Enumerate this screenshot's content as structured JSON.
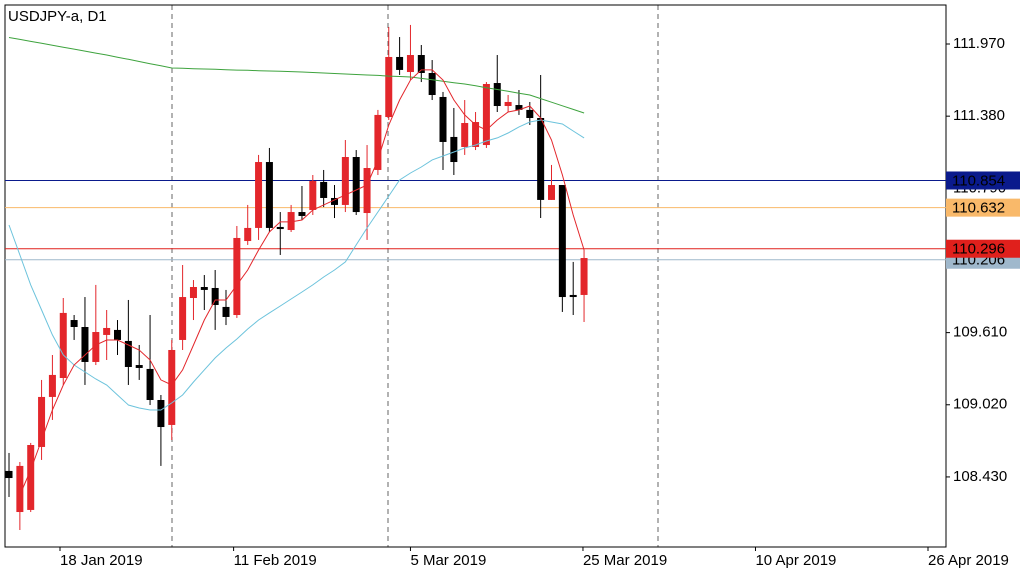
{
  "chart_data": {
    "type": "candlestick",
    "title": "USDJPY-a, D1",
    "up_color": "#e3262b",
    "down_color": "#000000",
    "open": [
      108.479,
      108.143,
      108.16,
      108.675,
      109.084,
      109.239,
      109.713,
      109.656,
      109.37,
      109.591,
      109.632,
      109.542,
      109.345,
      109.313,
      109.059,
      108.855,
      109.55,
      109.893,
      109.983,
      109.975,
      109.82,
      109.754,
      110.359,
      110.466,
      111.005,
      110.474,
      110.449,
      110.596,
      110.613,
      110.842,
      110.711,
      110.654,
      111.046,
      110.588,
      110.94,
      111.373,
      111.864,
      111.741,
      111.88,
      111.733,
      111.537,
      111.21,
      111.128,
      111.128,
      111.144,
      111.651,
      111.463,
      111.471,
      111.431,
      111.365,
      110.695,
      110.817,
      109.918,
      109.918
    ],
    "high": [
      108.626,
      108.552,
      108.708,
      109.223,
      109.427,
      109.893,
      109.754,
      109.901,
      110.0,
      109.795,
      109.713,
      109.877,
      109.509,
      109.754,
      109.1,
      109.55,
      110.163,
      110.04,
      110.081,
      110.122,
      109.959,
      110.482,
      110.654,
      111.063,
      111.12,
      110.596,
      110.654,
      110.809,
      110.899,
      110.94,
      110.817,
      111.185,
      111.103,
      111.144,
      111.431,
      112.109,
      112.027,
      112.126,
      111.962,
      111.839,
      111.578,
      111.447,
      111.512,
      111.414,
      111.659,
      111.88,
      111.553,
      111.594,
      111.496,
      111.717,
      110.981,
      110.817,
      110.188,
      110.286
    ],
    "low": [
      108.266,
      107.996,
      108.143,
      108.569,
      108.896,
      109.182,
      109.55,
      109.182,
      109.345,
      109.386,
      109.427,
      109.182,
      109.223,
      109.018,
      108.52,
      108.732,
      109.468,
      109.713,
      109.795,
      109.632,
      109.672,
      109.73,
      110.327,
      110.368,
      110.433,
      110.245,
      110.433,
      110.531,
      110.572,
      110.637,
      110.547,
      110.596,
      110.572,
      110.368,
      110.899,
      111.349,
      111.717,
      111.676,
      111.659,
      111.512,
      110.94,
      110.899,
      111.063,
      111.103,
      111.12,
      111.414,
      111.414,
      111.39,
      111.308,
      110.547,
      110.695,
      109.779,
      109.754,
      109.697
    ],
    "close": [
      108.421,
      108.52,
      108.691,
      109.084,
      109.264,
      109.771,
      109.656,
      109.37,
      109.615,
      109.648,
      109.55,
      109.329,
      109.321,
      109.059,
      108.838,
      109.468,
      109.901,
      109.983,
      109.959,
      109.836,
      109.738,
      110.384,
      110.466,
      111.005,
      110.466,
      110.457,
      110.596,
      110.564,
      110.85,
      110.711,
      110.654,
      111.046,
      110.596,
      110.956,
      111.39,
      111.864,
      111.758,
      111.88,
      111.733,
      111.553,
      111.169,
      111.005,
      111.324,
      111.332,
      111.643,
      111.463,
      111.496,
      111.431,
      111.365,
      110.695,
      110.817,
      109.901,
      109.901,
      110.22
    ],
    "indicators": [
      {
        "color": "#3ea33e",
        "values": [
          112.023,
          112.008,
          111.991,
          111.976,
          111.96,
          111.944,
          111.928,
          111.912,
          111.896,
          111.88,
          111.862,
          111.845,
          111.827,
          111.809,
          111.792,
          111.774,
          111.771,
          111.768,
          111.766,
          111.763,
          111.76,
          111.757,
          111.755,
          111.752,
          111.749,
          111.747,
          111.744,
          111.741,
          111.737,
          111.733,
          111.729,
          111.725,
          111.721,
          111.717,
          111.713,
          111.708,
          111.704,
          111.7,
          111.689,
          111.677,
          111.666,
          111.654,
          111.643,
          111.628,
          111.613,
          111.598,
          111.583,
          111.568,
          111.553,
          111.524,
          111.494,
          111.465,
          111.435,
          111.406
        ]
      },
      {
        "color": "#6cc3dc",
        "values": [
          110.49,
          110.245,
          110.0,
          109.795,
          109.591,
          109.427,
          109.345,
          109.288,
          109.231,
          109.182,
          109.1,
          109.018,
          108.994,
          108.977,
          108.977,
          109.035,
          109.1,
          109.206,
          109.305,
          109.403,
          109.484,
          109.558,
          109.64,
          109.713,
          109.771,
          109.828,
          109.885,
          109.942,
          110.0,
          110.065,
          110.122,
          110.188,
          110.327,
          110.466,
          110.596,
          110.727,
          110.858,
          110.915,
          110.964,
          111.022,
          111.054,
          111.087,
          111.12,
          111.144,
          111.177,
          111.202,
          111.242,
          111.292,
          111.332,
          111.349,
          111.332,
          111.316,
          111.259,
          111.202
        ]
      },
      {
        "color": "#e3262b",
        "values": [
          null,
          108.282,
          108.487,
          108.732,
          108.977,
          109.182,
          109.345,
          109.427,
          109.509,
          109.55,
          109.55,
          109.509,
          109.468,
          109.386,
          109.223,
          109.182,
          109.305,
          109.509,
          109.713,
          109.877,
          109.877,
          110.0,
          110.122,
          110.286,
          110.433,
          110.515,
          110.515,
          110.531,
          110.613,
          110.654,
          110.695,
          110.736,
          110.776,
          110.817,
          111.022,
          111.308,
          111.512,
          111.676,
          111.758,
          111.758,
          111.676,
          111.512,
          111.39,
          111.308,
          111.267,
          111.349,
          111.414,
          111.431,
          111.463,
          111.365,
          111.185,
          110.899,
          110.572,
          110.286
        ]
      }
    ],
    "levels": [
      {
        "value": 110.206,
        "color": "#9fb8cc",
        "text_color": "#000000"
      },
      {
        "value": 110.632,
        "color": "#f9b96a",
        "text_color": "#ffffff"
      },
      {
        "value": 110.854,
        "color": "#0a1a8c",
        "text_color": "#ffffff"
      },
      {
        "value": 110.296,
        "color": "#e0201c",
        "text_color": "#ffffff"
      }
    ],
    "ylim": [
      107.857,
      112.289
    ],
    "yticks": [
      {
        "value": 111.97,
        "label": "111.970"
      },
      {
        "value": 111.38,
        "label": "111.380"
      },
      {
        "value": 110.79,
        "label": "110.790"
      },
      {
        "value": 109.61,
        "label": "109.610"
      },
      {
        "value": 109.02,
        "label": "109.020"
      },
      {
        "value": 108.43,
        "label": "108.430"
      }
    ],
    "xlim": [
      -0.37,
      86.36
    ],
    "xticks": [
      {
        "value": 4.7,
        "label": "18 Jan 2019"
      },
      {
        "value": 20.7,
        "label": "11 Feb 2019"
      },
      {
        "value": 37,
        "label": "5 Mar 2019"
      },
      {
        "value": 52.9,
        "label": "25 Mar 2019"
      },
      {
        "value": 68.8,
        "label": "10 Apr 2019"
      },
      {
        "value": 84.7,
        "label": "26 Apr 2019"
      }
    ]
  }
}
